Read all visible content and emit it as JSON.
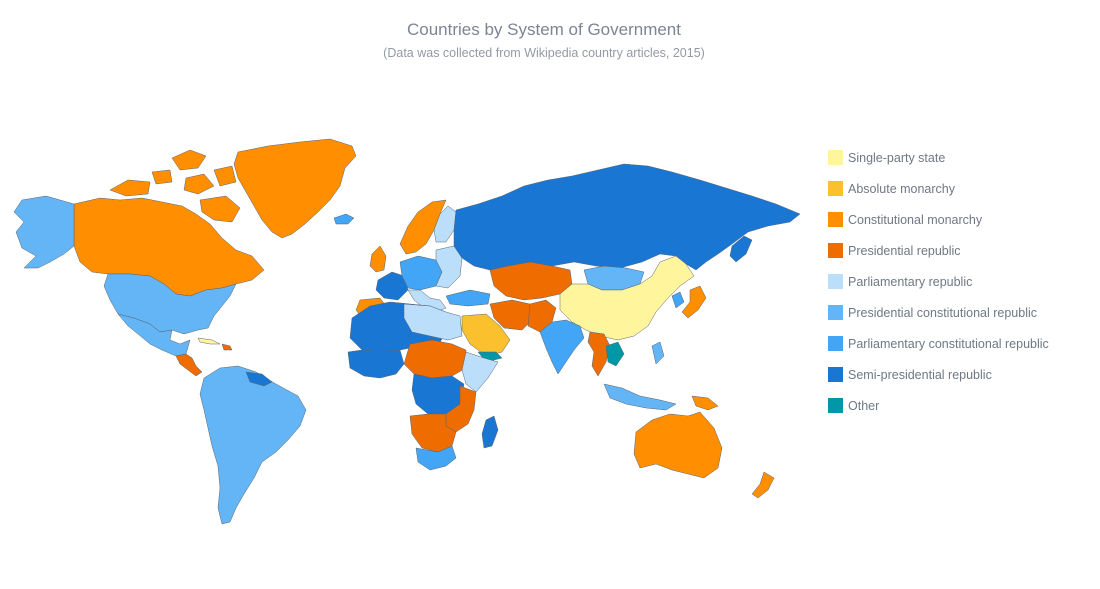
{
  "header": {
    "title": "Countries by System of Government",
    "subtitle": "(Data was collected from Wikipedia country articles, 2015)"
  },
  "legend": [
    {
      "id": "single-party",
      "label": "Single-party state",
      "color": "#fff59d"
    },
    {
      "id": "absolute-monarchy",
      "label": "Absolute monarchy",
      "color": "#fbc02d"
    },
    {
      "id": "constitutional-monarchy",
      "label": "Constitutional monarchy",
      "color": "#ff8f00"
    },
    {
      "id": "presidential-republic",
      "label": "Presidential republic",
      "color": "#ef6c00"
    },
    {
      "id": "parliamentary-republic",
      "label": "Parliamentary republic",
      "color": "#bbdefb"
    },
    {
      "id": "presidential-constitutional-republic",
      "label": "Presidential constitutional republic",
      "color": "#64b5f6"
    },
    {
      "id": "parliamentary-constitutional-republic",
      "label": "Parliamentary constitutional republic",
      "color": "#42a5f5"
    },
    {
      "id": "semi-presidential-republic",
      "label": "Semi-presidential republic",
      "color": "#1976d2"
    },
    {
      "id": "other",
      "label": "Other",
      "color": "#0097a7"
    }
  ]
}
